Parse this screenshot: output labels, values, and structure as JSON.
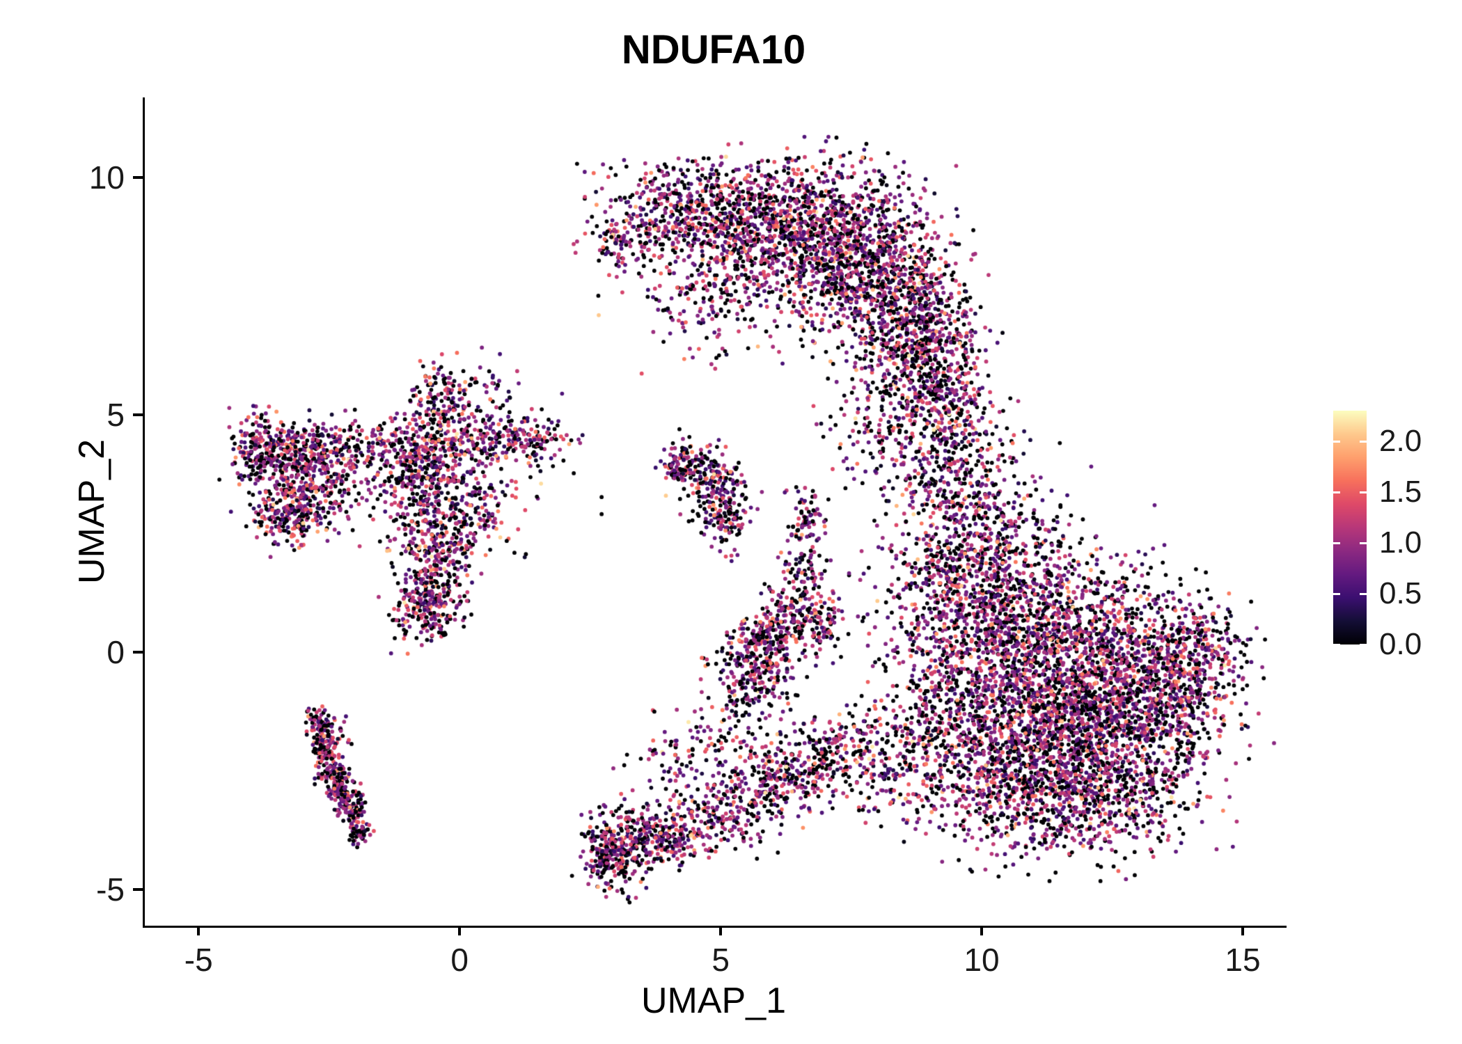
{
  "title": "NDUFA10",
  "chart_data": {
    "type": "scatter",
    "subtype": "umap-feature-plot",
    "title": "NDUFA10",
    "xlabel": "UMAP_1",
    "ylabel": "UMAP_2",
    "xlim": [
      -6.07,
      15.8
    ],
    "ylim": [
      -5.76,
      11.69
    ],
    "grid": false,
    "xticks": [
      {
        "v": -5,
        "label": "-5"
      },
      {
        "v": 0,
        "label": "0"
      },
      {
        "v": 5,
        "label": "5"
      },
      {
        "v": 10,
        "label": "10"
      },
      {
        "v": 15,
        "label": "15"
      }
    ],
    "yticks": [
      {
        "v": -5,
        "label": "-5"
      },
      {
        "v": 0,
        "label": "0"
      },
      {
        "v": 5,
        "label": "5"
      },
      {
        "v": 10,
        "label": "10"
      }
    ],
    "colorbar": {
      "position": "right",
      "vmin": 0.0,
      "vmax": 2.3,
      "ticks": [
        {
          "v": 0.0,
          "label": "0.0"
        },
        {
          "v": 0.5,
          "label": "0.5"
        },
        {
          "v": 1.0,
          "label": "1.0"
        },
        {
          "v": 1.5,
          "label": "1.5"
        },
        {
          "v": 2.0,
          "label": "2.0"
        }
      ],
      "colormap": "magma",
      "stops": [
        {
          "t": 0.0,
          "color": "#000004"
        },
        {
          "t": 0.1,
          "color": "#140e36"
        },
        {
          "t": 0.2,
          "color": "#3b0f70"
        },
        {
          "t": 0.3,
          "color": "#641a80"
        },
        {
          "t": 0.4,
          "color": "#8c2981"
        },
        {
          "t": 0.5,
          "color": "#b73779"
        },
        {
          "t": 0.6,
          "color": "#de4968"
        },
        {
          "t": 0.7,
          "color": "#f7705c"
        },
        {
          "t": 0.8,
          "color": "#fe9f6d"
        },
        {
          "t": 0.9,
          "color": "#fec98d"
        },
        {
          "t": 1.0,
          "color": "#fcfdbf"
        }
      ]
    },
    "point_style": {
      "radius": 2.9,
      "zero_color": "#000004"
    },
    "expression_distribution": {
      "zero_fraction": 0.32,
      "mean": 0.95,
      "sd": 0.45,
      "min": 0.05,
      "max": 2.3
    },
    "seed": 42,
    "clusters": [
      {
        "name": "upper-arc",
        "blobs": [
          [
            3.2,
            8.75,
            0.45,
            0.3,
            120
          ],
          [
            4.2,
            9.3,
            0.8,
            0.5,
            300
          ],
          [
            5.4,
            9.2,
            0.8,
            0.55,
            380
          ],
          [
            6.6,
            8.9,
            0.8,
            0.7,
            550
          ],
          [
            7.7,
            8.4,
            0.75,
            0.85,
            600
          ],
          [
            8.5,
            7.4,
            0.6,
            0.85,
            500,
            15
          ],
          [
            8.9,
            6.4,
            0.5,
            0.7,
            300,
            10
          ],
          [
            6.3,
            7.7,
            1.2,
            0.7,
            260
          ],
          [
            4.9,
            8.2,
            0.9,
            0.6,
            160
          ],
          [
            4.4,
            6.9,
            0.6,
            0.5,
            45
          ],
          [
            8.4,
            5.4,
            0.7,
            0.7,
            150
          ],
          [
            9.2,
            5.6,
            0.4,
            0.5,
            90
          ],
          [
            8.1,
            4.6,
            0.6,
            0.6,
            80
          ]
        ]
      },
      {
        "name": "right-mass",
        "blobs": [
          [
            9.4,
            4.4,
            0.5,
            0.7,
            200
          ],
          [
            9.6,
            3.1,
            0.75,
            0.8,
            350
          ],
          [
            9.9,
            1.9,
            0.8,
            0.8,
            350
          ],
          [
            9.1,
            1.0,
            0.6,
            0.8,
            150
          ],
          [
            10.5,
            0.6,
            1.0,
            0.9,
            500
          ],
          [
            11.6,
            0.3,
            1.1,
            1.0,
            650
          ],
          [
            12.6,
            -0.4,
            1.1,
            0.95,
            650
          ],
          [
            13.6,
            -1.0,
            0.7,
            0.8,
            350
          ],
          [
            14.1,
            0.1,
            0.45,
            0.6,
            180
          ],
          [
            11.2,
            -1.4,
            1.1,
            1.0,
            650
          ],
          [
            12.3,
            -2.0,
            1.0,
            0.9,
            550
          ],
          [
            10.3,
            -2.3,
            0.9,
            0.9,
            480
          ],
          [
            11.3,
            -3.1,
            1.0,
            0.6,
            380
          ],
          [
            12.6,
            -3.0,
            0.8,
            0.5,
            200
          ],
          [
            9.6,
            -0.6,
            0.6,
            1.0,
            250
          ],
          [
            9.0,
            -1.5,
            0.5,
            0.7,
            150
          ]
        ]
      },
      {
        "name": "left-small",
        "blobs": [
          [
            -3.5,
            4.2,
            0.5,
            0.35,
            200
          ],
          [
            -3.0,
            3.3,
            0.45,
            0.45,
            240
          ],
          [
            -3.3,
            2.85,
            0.4,
            0.3,
            140
          ],
          [
            -2.55,
            3.9,
            0.45,
            0.4,
            130
          ],
          [
            -3.9,
            4.35,
            0.25,
            0.3,
            80
          ],
          [
            -2.9,
            4.4,
            0.4,
            0.25,
            90
          ]
        ]
      },
      {
        "name": "center-left-branching",
        "blobs": [
          [
            -0.6,
            4.05,
            0.5,
            0.5,
            300
          ],
          [
            -0.4,
            5.3,
            0.3,
            0.45,
            110
          ],
          [
            0.6,
            4.45,
            0.6,
            0.3,
            150
          ],
          [
            1.35,
            4.5,
            0.35,
            0.2,
            70
          ],
          [
            -1.5,
            4.35,
            0.5,
            0.3,
            100,
            -15
          ],
          [
            -0.75,
            2.9,
            0.35,
            0.55,
            150
          ],
          [
            0.25,
            2.95,
            0.4,
            0.4,
            100
          ],
          [
            -0.55,
            1.5,
            0.3,
            0.6,
            180,
            10
          ],
          [
            -0.75,
            0.9,
            0.3,
            0.35,
            160
          ],
          [
            -0.25,
            2.1,
            0.3,
            0.4,
            80
          ],
          [
            -0.4,
            3.7,
            1.1,
            0.9,
            160
          ],
          [
            0.3,
            5.3,
            0.5,
            0.4,
            60
          ]
        ]
      },
      {
        "name": "lower-left-streak",
        "blobs": [
          [
            -2.75,
            -1.5,
            0.12,
            0.18,
            50
          ],
          [
            -2.55,
            -1.7,
            0.2,
            0.15,
            40
          ],
          [
            -2.6,
            -2.0,
            0.13,
            0.22,
            80
          ],
          [
            -2.45,
            -2.5,
            0.13,
            0.22,
            80
          ],
          [
            -2.3,
            -2.9,
            0.13,
            0.22,
            80
          ],
          [
            -2.1,
            -3.3,
            0.12,
            0.2,
            70
          ],
          [
            -1.95,
            -3.7,
            0.12,
            0.18,
            50
          ]
        ]
      },
      {
        "name": "center-streak",
        "blobs": [
          [
            4.35,
            4.0,
            0.28,
            0.25,
            90
          ],
          [
            4.8,
            3.5,
            0.3,
            0.35,
            130
          ],
          [
            5.05,
            2.85,
            0.25,
            0.4,
            110
          ],
          [
            4.1,
            3.85,
            0.15,
            0.15,
            40
          ]
        ]
      },
      {
        "name": "lower-center-band",
        "blobs": [
          [
            2.75,
            -4.35,
            0.2,
            0.25,
            60
          ],
          [
            3.0,
            -4.15,
            0.35,
            0.4,
            240
          ],
          [
            3.7,
            -3.95,
            0.5,
            0.3,
            200
          ],
          [
            4.6,
            -3.65,
            0.55,
            0.3,
            140
          ],
          [
            5.5,
            -3.1,
            0.5,
            0.4,
            140
          ],
          [
            6.2,
            -2.6,
            0.5,
            0.4,
            140
          ],
          [
            6.9,
            -2.2,
            0.5,
            0.4,
            130
          ],
          [
            7.6,
            -2.0,
            0.5,
            0.5,
            110
          ],
          [
            8.3,
            -2.6,
            0.5,
            0.6,
            90
          ],
          [
            5.1,
            -1.9,
            0.8,
            0.6,
            120
          ],
          [
            4.2,
            -2.6,
            0.6,
            0.5,
            70
          ]
        ]
      },
      {
        "name": "center-dense-small",
        "blobs": [
          [
            5.55,
            -0.35,
            0.35,
            0.5,
            240
          ],
          [
            5.85,
            0.25,
            0.3,
            0.3,
            120
          ],
          [
            6.2,
            0.8,
            0.3,
            0.35,
            80
          ],
          [
            6.75,
            0.6,
            0.3,
            0.4,
            130
          ]
        ]
      },
      {
        "name": "center-strip",
        "blobs": [
          [
            6.6,
            1.9,
            0.22,
            0.65,
            110
          ],
          [
            6.7,
            2.9,
            0.2,
            0.3,
            40
          ]
        ]
      }
    ]
  }
}
